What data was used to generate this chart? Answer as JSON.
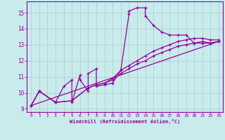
{
  "xlabel": "Windchill (Refroidissement éolien,°C)",
  "bg_color": "#c8ecec",
  "line_color": "#990099",
  "grid_color": "#b0c8c8",
  "xlim": [
    -0.5,
    23.5
  ],
  "ylim": [
    8.8,
    15.7
  ],
  "yticks": [
    9,
    10,
    11,
    12,
    13,
    14,
    15
  ],
  "xticks": [
    0,
    1,
    2,
    3,
    4,
    5,
    6,
    7,
    8,
    9,
    10,
    11,
    12,
    13,
    14,
    15,
    16,
    17,
    18,
    19,
    20,
    21,
    22,
    23
  ],
  "line1_x": [
    0,
    1,
    3,
    4,
    5,
    5,
    6,
    6,
    7,
    7,
    8,
    8,
    9,
    10,
    11,
    12,
    12,
    13,
    14,
    14,
    15,
    16,
    17,
    18,
    19,
    20,
    21,
    22,
    23
  ],
  "line1_y": [
    9.2,
    10.1,
    9.4,
    10.4,
    10.8,
    9.4,
    11.1,
    10.8,
    10.1,
    11.2,
    11.5,
    10.4,
    10.5,
    10.6,
    11.4,
    14.9,
    15.1,
    15.3,
    15.3,
    14.8,
    14.2,
    13.8,
    13.6,
    13.6,
    13.6,
    13.1,
    13.2,
    13.1,
    13.2
  ],
  "line2_x": [
    0,
    1,
    3,
    5,
    7,
    8,
    9,
    10,
    11,
    12,
    13,
    14,
    15,
    16,
    17,
    18,
    19,
    20,
    21,
    22,
    23
  ],
  "line2_y": [
    9.2,
    10.1,
    9.4,
    9.5,
    10.3,
    10.5,
    10.6,
    10.8,
    11.2,
    11.5,
    11.8,
    12.0,
    12.3,
    12.5,
    12.7,
    12.9,
    13.0,
    13.1,
    13.1,
    13.1,
    13.2
  ],
  "line3_x": [
    0,
    1,
    3,
    5,
    7,
    8,
    9,
    10,
    11,
    12,
    13,
    14,
    15,
    16,
    17,
    18,
    19,
    20,
    21,
    22,
    23
  ],
  "line3_y": [
    9.2,
    10.1,
    9.4,
    9.5,
    10.3,
    10.5,
    10.6,
    10.9,
    11.4,
    11.7,
    12.0,
    12.3,
    12.6,
    12.8,
    13.0,
    13.2,
    13.3,
    13.4,
    13.4,
    13.3,
    13.3
  ],
  "line4_x": [
    0,
    23
  ],
  "line4_y": [
    9.2,
    13.2
  ]
}
